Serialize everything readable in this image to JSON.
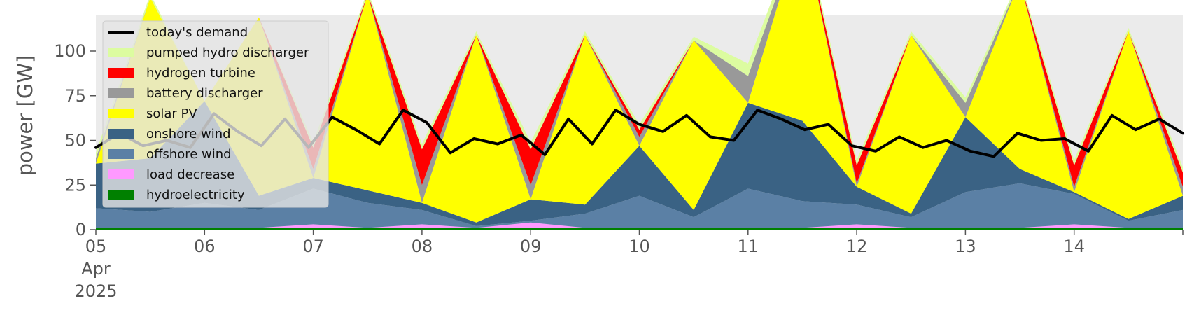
{
  "chart_data": {
    "type": "area",
    "title": "",
    "xlabel": "",
    "ylabel": "power [GW]",
    "ylim": [
      0,
      120
    ],
    "xlim": [
      "2025-04-05T00:00",
      "2025-04-15T00:00"
    ],
    "yticks": [
      "0",
      "25",
      "50",
      "75",
      "100"
    ],
    "xticks": [
      {
        "date": "2025-04-05",
        "lines": [
          "05",
          "Apr",
          "2025"
        ]
      },
      {
        "date": "2025-04-06",
        "lines": [
          "06"
        ]
      },
      {
        "date": "2025-04-07",
        "lines": [
          "07"
        ]
      },
      {
        "date": "2025-04-08",
        "lines": [
          "08"
        ]
      },
      {
        "date": "2025-04-09",
        "lines": [
          "09"
        ]
      },
      {
        "date": "2025-04-10",
        "lines": [
          "10"
        ]
      },
      {
        "date": "2025-04-11",
        "lines": [
          "11"
        ]
      },
      {
        "date": "2025-04-12",
        "lines": [
          "12"
        ]
      },
      {
        "date": "2025-04-13",
        "lines": [
          "13"
        ]
      },
      {
        "date": "2025-04-14",
        "lines": [
          "14"
        ]
      }
    ],
    "grid": false,
    "background": "#ebebeb",
    "legend_placement": "upper-left",
    "x": [
      "2025-04-05 00:00",
      "2025-04-05 12:00",
      "2025-04-06 00:00",
      "2025-04-06 12:00",
      "2025-04-07 00:00",
      "2025-04-07 12:00",
      "2025-04-08 00:00",
      "2025-04-08 12:00",
      "2025-04-09 00:00",
      "2025-04-09 12:00",
      "2025-04-10 00:00",
      "2025-04-10 12:00",
      "2025-04-11 00:00",
      "2025-04-11 12:00",
      "2025-04-12 00:00",
      "2025-04-12 12:00",
      "2025-04-13 00:00",
      "2025-04-13 12:00",
      "2025-04-14 00:00",
      "2025-04-14 12:00",
      "2025-04-15 00:00"
    ],
    "series": [
      {
        "name": "hydroelectricity",
        "color": "#008000",
        "values": [
          1,
          1,
          1,
          1,
          1,
          1,
          1,
          1,
          1,
          1,
          1,
          1,
          1,
          1,
          1,
          1,
          1,
          1,
          1,
          1,
          1
        ]
      },
      {
        "name": "load decrease",
        "color": "#ff99ff",
        "values": [
          0,
          0,
          0,
          0,
          2,
          0,
          2,
          0,
          3,
          0,
          0,
          0,
          0,
          0,
          2,
          0,
          0,
          0,
          2,
          0,
          0
        ]
      },
      {
        "name": "offshore wind",
        "color": "#5b80a5",
        "values": [
          11,
          9,
          14,
          10,
          20,
          14,
          8,
          1,
          1,
          8,
          18,
          6,
          22,
          15,
          11,
          6,
          20,
          25,
          17,
          4,
          10
        ]
      },
      {
        "name": "onshore wind",
        "color": "#3a6284",
        "values": [
          25,
          30,
          57,
          8,
          6,
          7,
          4,
          2,
          12,
          5,
          28,
          4,
          48,
          45,
          10,
          2,
          42,
          8,
          1,
          1,
          8
        ]
      },
      {
        "name": "solar PV",
        "color": "#ffff00",
        "values": [
          0,
          90,
          0,
          100,
          0,
          110,
          0,
          105,
          0,
          95,
          0,
          95,
          0,
          110,
          0,
          100,
          0,
          105,
          0,
          105,
          0
        ]
      },
      {
        "name": "battery discharger",
        "color": "#999999",
        "values": [
          3,
          0,
          0,
          0,
          5,
          0,
          10,
          0,
          8,
          0,
          5,
          0,
          15,
          0,
          2,
          0,
          8,
          0,
          3,
          0,
          5
        ]
      },
      {
        "name": "hydrogen turbine",
        "color": "#ff0000",
        "values": [
          0,
          0,
          0,
          0,
          12,
          0,
          20,
          0,
          20,
          0,
          4,
          0,
          0,
          0,
          10,
          0,
          0,
          0,
          12,
          0,
          8
        ]
      },
      {
        "name": "pumped hydro discharger",
        "color": "#dcfca0",
        "values": [
          3,
          2,
          0,
          0,
          3,
          2,
          3,
          2,
          4,
          2,
          3,
          2,
          7,
          3,
          3,
          2,
          3,
          2,
          3,
          2,
          3
        ]
      }
    ],
    "demand": {
      "name": "today's demand",
      "color": "#000000",
      "values": [
        46,
        54,
        47,
        50,
        46,
        65,
        55,
        47,
        62,
        46,
        63,
        56,
        48,
        67,
        60,
        43,
        51,
        48,
        53,
        42,
        62,
        48,
        67,
        59,
        55,
        64,
        52,
        50,
        67,
        62,
        56,
        59,
        47,
        44,
        52,
        46,
        50,
        44,
        41,
        54,
        50,
        51,
        44,
        64,
        56,
        62,
        54
      ]
    }
  },
  "legend": {
    "items": [
      {
        "label": "today's demand",
        "color": "#000000",
        "kind": "line"
      },
      {
        "label": "pumped hydro discharger",
        "color": "#dcfca0",
        "kind": "patch"
      },
      {
        "label": "hydrogen turbine",
        "color": "#ff0000",
        "kind": "patch"
      },
      {
        "label": "battery discharger",
        "color": "#999999",
        "kind": "patch"
      },
      {
        "label": "solar PV",
        "color": "#ffff00",
        "kind": "patch"
      },
      {
        "label": "onshore wind",
        "color": "#3a6284",
        "kind": "patch"
      },
      {
        "label": "offshore wind",
        "color": "#5b80a5",
        "kind": "patch"
      },
      {
        "label": "load decrease",
        "color": "#ff99ff",
        "kind": "patch"
      },
      {
        "label": "hydroelectricity",
        "color": "#008000",
        "kind": "patch"
      }
    ]
  }
}
